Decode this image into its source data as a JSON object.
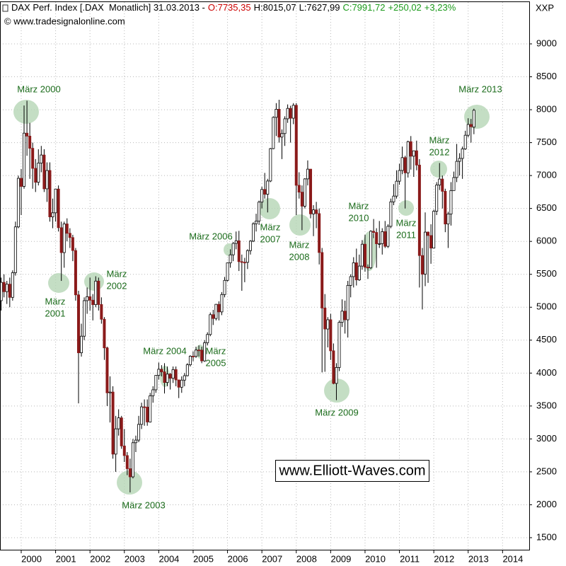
{
  "chart_data": {
    "type": "candlestick",
    "header": [
      {
        "text": "DAX Perf. Index [.DAX  Monatlich] 31.03.2013 -",
        "color": "#000000"
      },
      {
        "text": "O:7735,35",
        "color": "#cc0000"
      },
      {
        "text": "H:8015,07",
        "color": "#000000"
      },
      {
        "text": "L:7627,99",
        "color": "#000000"
      },
      {
        "text": "C:7991,72",
        "color": "#1a9a1a"
      },
      {
        "text": "+250,02",
        "color": "#1a9a1a"
      },
      {
        "text": "+3,23%",
        "color": "#1a9a1a"
      }
    ],
    "copyright": "© www.tradesignalonline.com",
    "axis_label": "XXP",
    "watermark": "www.Elliott-Waves.com",
    "up_color": "#ffffff",
    "down_color": "#8b1a1a",
    "wick_color": "#000000",
    "annotation_color": "#1a6b1a",
    "highlight_color": "#b5d6b5",
    "grid": true,
    "xlim": [
      1999.383,
      2014.775
    ],
    "xticks": [
      2000,
      2001,
      2002,
      2003,
      2004,
      2005,
      2006,
      2007,
      2008,
      2009,
      2010,
      2011,
      2012,
      2013,
      2014
    ],
    "ylim": [
      1317,
      9634
    ],
    "yticks": [
      1500,
      2000,
      2500,
      3000,
      3500,
      4000,
      4500,
      5000,
      5500,
      6000,
      6500,
      7000,
      7500,
      8000,
      8500,
      9000
    ],
    "x": [
      1999.417,
      1999.5,
      1999.583,
      1999.667,
      1999.75,
      1999.833,
      1999.917,
      2000,
      2000.083,
      2000.167,
      2000.25,
      2000.333,
      2000.417,
      2000.5,
      2000.583,
      2000.667,
      2000.75,
      2000.833,
      2000.917,
      2001,
      2001.083,
      2001.167,
      2001.25,
      2001.333,
      2001.417,
      2001.5,
      2001.583,
      2001.667,
      2001.75,
      2001.833,
      2001.917,
      2002,
      2002.083,
      2002.167,
      2002.25,
      2002.333,
      2002.417,
      2002.5,
      2002.583,
      2002.667,
      2002.75,
      2002.833,
      2002.917,
      2003,
      2003.083,
      2003.167,
      2003.25,
      2003.333,
      2003.417,
      2003.5,
      2003.583,
      2003.667,
      2003.75,
      2003.833,
      2003.917,
      2004,
      2004.083,
      2004.167,
      2004.25,
      2004.333,
      2004.417,
      2004.5,
      2004.583,
      2004.667,
      2004.75,
      2004.833,
      2004.917,
      2005,
      2005.083,
      2005.167,
      2005.25,
      2005.333,
      2005.417,
      2005.5,
      2005.583,
      2005.667,
      2005.75,
      2005.833,
      2005.917,
      2006,
      2006.083,
      2006.167,
      2006.25,
      2006.333,
      2006.417,
      2006.5,
      2006.583,
      2006.667,
      2006.75,
      2006.833,
      2006.917,
      2007,
      2007.083,
      2007.167,
      2007.25,
      2007.333,
      2007.417,
      2007.5,
      2007.583,
      2007.667,
      2007.75,
      2007.833,
      2007.917,
      2008,
      2008.083,
      2008.167,
      2008.25,
      2008.333,
      2008.417,
      2008.5,
      2008.583,
      2008.667,
      2008.75,
      2008.833,
      2008.917,
      2009,
      2009.083,
      2009.167,
      2009.25,
      2009.333,
      2009.417,
      2009.5,
      2009.583,
      2009.667,
      2009.75,
      2009.833,
      2009.917,
      2010,
      2010.083,
      2010.167,
      2010.25,
      2010.333,
      2010.417,
      2010.5,
      2010.583,
      2010.667,
      2010.75,
      2010.833,
      2010.917,
      2011,
      2011.083,
      2011.167,
      2011.25,
      2011.333,
      2011.417,
      2011.5,
      2011.583,
      2011.667,
      2011.75,
      2011.833,
      2011.917,
      2012,
      2012.083,
      2012.167,
      2012.25,
      2012.333,
      2012.417,
      2012.5,
      2012.583,
      2012.667,
      2012.75,
      2012.833,
      2012.917,
      2013,
      2013.083,
      2013.167
    ],
    "open": [
      5100,
      5378,
      5236,
      5350,
      5150,
      5525,
      6220,
      6958,
      6835,
      7644,
      7599,
      7414,
      7109,
      6898,
      7190,
      7312,
      6798,
      7077,
      6372,
      6434,
      6795,
      6208,
      5830,
      6265,
      6123,
      6058,
      5861,
      5188,
      4308,
      4560,
      5100,
      5160,
      5107,
      5039,
      5397,
      5041,
      4818,
      4383,
      3700,
      3712,
      2769,
      3153,
      3320,
      2893,
      2747,
      2548,
      2424,
      2942,
      2982,
      3221,
      3487,
      3484,
      3257,
      3655,
      3746,
      3965,
      4058,
      4018,
      3857,
      3985,
      3921,
      4053,
      3896,
      3785,
      3893,
      3960,
      4126,
      4256,
      4254,
      4350,
      4349,
      4185,
      4460,
      4586,
      4887,
      4829,
      5044,
      4929,
      5193,
      5408,
      5674,
      5796,
      5970,
      6009,
      5692,
      5683,
      5682,
      5860,
      6004,
      6268,
      6309,
      6597,
      6789,
      6716,
      6917,
      7409,
      7884,
      8007,
      7584,
      7638,
      7862,
      8020,
      7871,
      8067,
      6852,
      6748,
      6535,
      6949,
      7097,
      6418,
      6479,
      6422,
      5831,
      4988,
      4669,
      4810,
      4338,
      3843,
      4085,
      4770,
      4941,
      4809,
      5332,
      5465,
      5675,
      5415,
      5625,
      5957,
      5608,
      5599,
      6154,
      6136,
      5964,
      5966,
      6148,
      5925,
      6229,
      6601,
      6688,
      6914,
      7077,
      7272,
      7041,
      7514,
      7294,
      7376,
      7159,
      5785,
      5502,
      6141,
      6089,
      5898,
      6458,
      6856,
      6947,
      6761,
      6264,
      6416,
      6772,
      6970,
      7216,
      7260,
      7405,
      7612,
      7776,
      7735.35
    ],
    "high": [
      5450,
      5500,
      5400,
      5450,
      5560,
      6300,
      7000,
      7100,
      8064,
      8136,
      7800,
      7500,
      7250,
      7400,
      7450,
      7400,
      7200,
      7200,
      6650,
      6800,
      6850,
      6300,
      6300,
      6350,
      6200,
      6100,
      5900,
      5250,
      4750,
      5150,
      5300,
      5450,
      5200,
      5470,
      5450,
      5150,
      4850,
      4400,
      3950,
      3800,
      3350,
      3450,
      3350,
      3150,
      2800,
      2700,
      3000,
      3050,
      3350,
      3550,
      3600,
      3600,
      3700,
      3800,
      3970,
      4160,
      4120,
      4150,
      4100,
      4000,
      4100,
      4100,
      3900,
      3950,
      4000,
      4150,
      4270,
      4330,
      4400,
      4420,
      4400,
      4500,
      4620,
      4920,
      4960,
      5050,
      5090,
      5230,
      5460,
      5680,
      5880,
      5990,
      6150,
      6160,
      5800,
      5750,
      5880,
      6020,
      6290,
      6420,
      6620,
      6830,
      7040,
      6950,
      7420,
      7900,
      8100,
      8151,
      7700,
      7900,
      8080,
      8060,
      8100,
      8100,
      7050,
      6850,
      6960,
      7230,
      7100,
      6550,
      6600,
      6500,
      5900,
      5200,
      4850,
      4900,
      4450,
      4150,
      4800,
      5120,
      5100,
      5400,
      5500,
      5760,
      5890,
      5800,
      6020,
      6100,
      5650,
      6170,
      6340,
      6200,
      6310,
      6200,
      6310,
      6260,
      6650,
      6870,
      7080,
      7180,
      7440,
      7300,
      7530,
      7600,
      7380,
      7530,
      7250,
      5900,
      6440,
      6150,
      6260,
      6480,
      6900,
      7190,
      7000,
      6800,
      6450,
      6900,
      7060,
      7480,
      7340,
      7440,
      7680,
      7870,
      7860,
      8015.07
    ],
    "low": [
      4950,
      5150,
      5050,
      5000,
      5100,
      5480,
      6200,
      6400,
      6800,
      7300,
      6950,
      6800,
      6750,
      6850,
      7050,
      6750,
      6600,
      6300,
      6200,
      6300,
      6150,
      5400,
      5600,
      6000,
      5900,
      5700,
      5100,
      3540,
      4250,
      4500,
      4900,
      4950,
      4800,
      5000,
      4950,
      4750,
      4200,
      3500,
      3250,
      2700,
      2500,
      3050,
      2850,
      2650,
      2450,
      2188,
      2400,
      2800,
      2950,
      3150,
      3200,
      3200,
      3250,
      3550,
      3700,
      3900,
      3950,
      3690,
      3800,
      3750,
      3850,
      3800,
      3620,
      3700,
      3800,
      3950,
      4100,
      4180,
      4230,
      4250,
      4150,
      4170,
      4420,
      4560,
      4730,
      4800,
      4800,
      4880,
      5150,
      5390,
      5600,
      5700,
      5880,
      5550,
      5250,
      5380,
      5580,
      5800,
      5990,
      6150,
      6250,
      6500,
      6650,
      6440,
      6900,
      7400,
      7600,
      7500,
      7250,
      7450,
      7800,
      7500,
      7780,
      6400,
      6650,
      6170,
      6500,
      6850,
      6350,
      6080,
      6200,
      5650,
      4010,
      4020,
      4390,
      4200,
      3830,
      3589,
      4030,
      4700,
      4600,
      4540,
      5150,
      5300,
      5330,
      5400,
      5570,
      5540,
      5430,
      5580,
      6050,
      5600,
      5900,
      5800,
      5900,
      5900,
      6200,
      6550,
      6650,
      6860,
      7020,
      6500,
      6970,
      7090,
      6980,
      7080,
      5300,
      4966,
      5320,
      5370,
      5660,
      5900,
      6400,
      6780,
      6500,
      6140,
      5900,
      6240,
      6770,
      6900,
      7000,
      6950,
      7390,
      7580,
      7500,
      7627.99
    ],
    "close": [
      5378,
      5236,
      5350,
      5150,
      5525,
      6220,
      6958,
      6835,
      7644,
      7599,
      7414,
      7109,
      6898,
      7190,
      7312,
      6798,
      7077,
      6372,
      6434,
      6795,
      6208,
      5830,
      6265,
      6123,
      6058,
      5861,
      5188,
      4308,
      4560,
      5100,
      5160,
      5107,
      5039,
      5397,
      5041,
      4818,
      4383,
      3700,
      3712,
      2769,
      3153,
      3320,
      2893,
      2747,
      2548,
      2424,
      2942,
      2982,
      3221,
      3487,
      3484,
      3257,
      3655,
      3746,
      3965,
      4058,
      4018,
      3857,
      3985,
      3921,
      4053,
      3896,
      3785,
      3893,
      3960,
      4126,
      4256,
      4254,
      4350,
      4349,
      4185,
      4460,
      4586,
      4887,
      4829,
      5044,
      4929,
      5193,
      5408,
      5674,
      5796,
      5970,
      6009,
      5692,
      5683,
      5682,
      5860,
      6004,
      6268,
      6309,
      6597,
      6789,
      6716,
      6917,
      7409,
      7884,
      8007,
      7584,
      7638,
      7862,
      8020,
      7871,
      8067,
      6852,
      6748,
      6535,
      6949,
      7097,
      6418,
      6479,
      6422,
      5831,
      4988,
      4669,
      4810,
      4338,
      3843,
      4085,
      4770,
      4941,
      4809,
      5332,
      5465,
      5675,
      5415,
      5625,
      5957,
      5608,
      5599,
      6154,
      6136,
      5964,
      5966,
      6148,
      5925,
      6229,
      6601,
      6688,
      6914,
      7077,
      7272,
      7041,
      7514,
      7294,
      7376,
      7159,
      5785,
      5502,
      6141,
      6089,
      5898,
      6458,
      6856,
      6947,
      6761,
      6264,
      6416,
      6772,
      6970,
      7216,
      7260,
      7405,
      7612,
      7776,
      7742,
      7991.72
    ],
    "annotations": [
      {
        "lines": [
          "März 2000"
        ]
      },
      {
        "lines": [
          "März",
          "2001"
        ]
      },
      {
        "lines": [
          "März",
          "2002"
        ]
      },
      {
        "lines": [
          "März 2003"
        ]
      },
      {
        "lines": [
          "März 2004"
        ]
      },
      {
        "lines": [
          "März",
          "2005"
        ]
      },
      {
        "lines": [
          "März 2006"
        ]
      },
      {
        "lines": [
          "März",
          "2007"
        ]
      },
      {
        "lines": [
          "März",
          "2008"
        ]
      },
      {
        "lines": [
          "März 2009"
        ]
      },
      {
        "lines": [
          "März",
          "2010"
        ]
      },
      {
        "lines": [
          "März",
          "2011"
        ]
      },
      {
        "lines": [
          "März",
          "2012"
        ]
      },
      {
        "lines": [
          "März 2013"
        ]
      }
    ]
  }
}
